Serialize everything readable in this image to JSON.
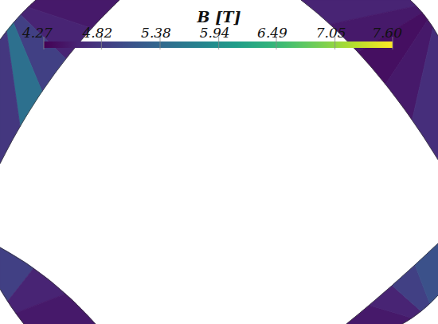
{
  "chart_data": {
    "type": "surface",
    "colorbar": {
      "title": "B [T]",
      "range": [
        4.27,
        7.6
      ],
      "ticks": [
        4.27,
        4.82,
        5.38,
        5.94,
        6.49,
        7.05,
        {
          "value": 7.6,
          "label": "7.60"
        }
      ]
    },
    "bands": [
      {
        "values": [
          4.5,
          4.6,
          4.9,
          5.5,
          4.8
        ]
      },
      {
        "values": [
          4.6,
          4.5,
          4.4,
          4.5,
          4.7
        ]
      },
      {
        "values": [
          4.9,
          4.6,
          4.5
        ]
      },
      {
        "values": [
          4.5,
          4.6,
          4.9,
          5.1
        ]
      }
    ]
  }
}
